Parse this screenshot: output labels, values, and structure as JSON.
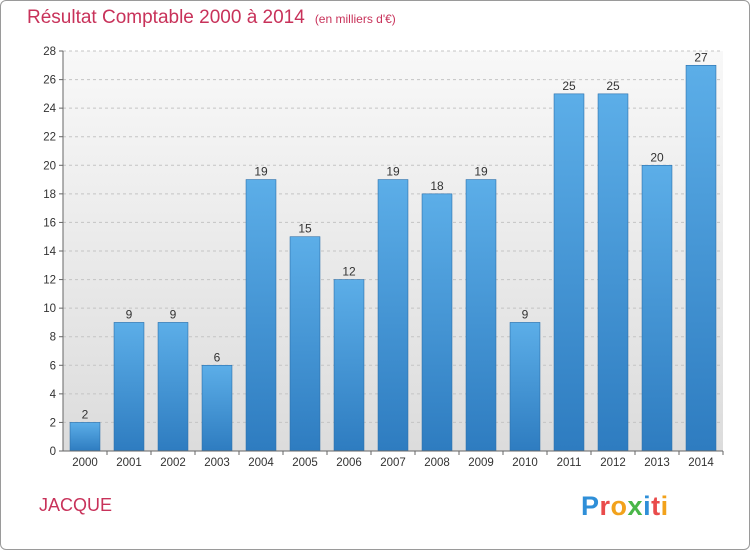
{
  "chart_data": {
    "type": "bar",
    "title": "Résultat Comptable 2000 à 2014",
    "subtitle": "(en milliers d'€)",
    "categories": [
      "2000",
      "2001",
      "2002",
      "2003",
      "2004",
      "2005",
      "2006",
      "2007",
      "2008",
      "2009",
      "2010",
      "2011",
      "2012",
      "2013",
      "2014"
    ],
    "values": [
      2,
      9,
      9,
      6,
      19,
      15,
      12,
      19,
      18,
      19,
      9,
      25,
      25,
      20,
      27
    ],
    "ylim": [
      0,
      28
    ],
    "yticks": [
      0,
      2,
      4,
      6,
      8,
      10,
      12,
      14,
      16,
      18,
      20,
      22,
      24,
      26,
      28
    ],
    "xlabel": "",
    "ylabel": "",
    "grid": true,
    "bar_color": "#3d8fd6",
    "title_color": "#c8325a"
  },
  "footer": {
    "place": "JACQUE",
    "brand_letters": [
      {
        "ch": "P",
        "color": "#2f8fd8"
      },
      {
        "ch": "r",
        "color": "#e94b4b"
      },
      {
        "ch": "o",
        "color": "#f2a21b"
      },
      {
        "ch": "x",
        "color": "#49b648"
      },
      {
        "ch": "i",
        "color": "#2f8fd8"
      },
      {
        "ch": "t",
        "color": "#e94b4b"
      },
      {
        "ch": "i",
        "color": "#f2a21b"
      }
    ]
  }
}
